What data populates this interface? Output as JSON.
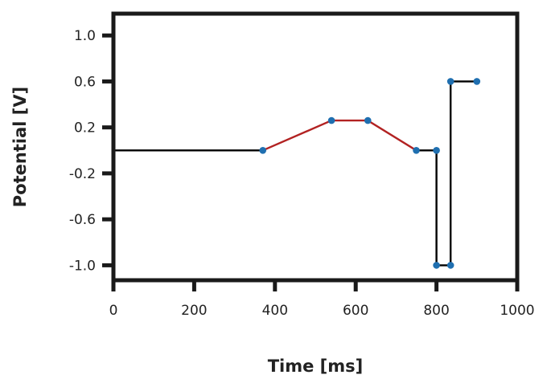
{
  "chart_data": {
    "type": "line",
    "title": "",
    "xlabel": "Time [ms]",
    "ylabel": "Potential [V]",
    "xlim": [
      0,
      1000
    ],
    "ylim": [
      -1.13,
      1.19
    ],
    "xticks": [
      0,
      200,
      400,
      600,
      800,
      1000
    ],
    "xtick_labels": [
      "0",
      "200",
      "400",
      "600",
      "800",
      "1000"
    ],
    "yticks": [
      1.0,
      0.6,
      0.2,
      -0.2,
      -0.6,
      -1.0
    ],
    "ytick_labels": [
      "1.0",
      "0.6",
      "0.2",
      "-0.2",
      "-0.6",
      "-1.0"
    ],
    "grid": false,
    "segments": [
      {
        "color": "#000000",
        "points": [
          [
            0,
            0.0
          ],
          [
            370,
            0.0
          ]
        ]
      },
      {
        "color": "#b22222",
        "points": [
          [
            370,
            0.0
          ],
          [
            540,
            0.26
          ],
          [
            630,
            0.26
          ],
          [
            750,
            0.0
          ]
        ]
      },
      {
        "color": "#000000",
        "points": [
          [
            750,
            0.0
          ],
          [
            800,
            0.0
          ],
          [
            800,
            -1.0
          ],
          [
            835,
            -1.0
          ],
          [
            835,
            0.6
          ],
          [
            900,
            0.6
          ]
        ]
      }
    ],
    "markers": {
      "color": "#1f6fb0",
      "points": [
        [
          370,
          0.0
        ],
        [
          540,
          0.26
        ],
        [
          630,
          0.26
        ],
        [
          750,
          0.0
        ],
        [
          800,
          0.0
        ],
        [
          800,
          -1.0
        ],
        [
          835,
          -1.0
        ],
        [
          835,
          0.6
        ],
        [
          900,
          0.6
        ]
      ]
    }
  }
}
